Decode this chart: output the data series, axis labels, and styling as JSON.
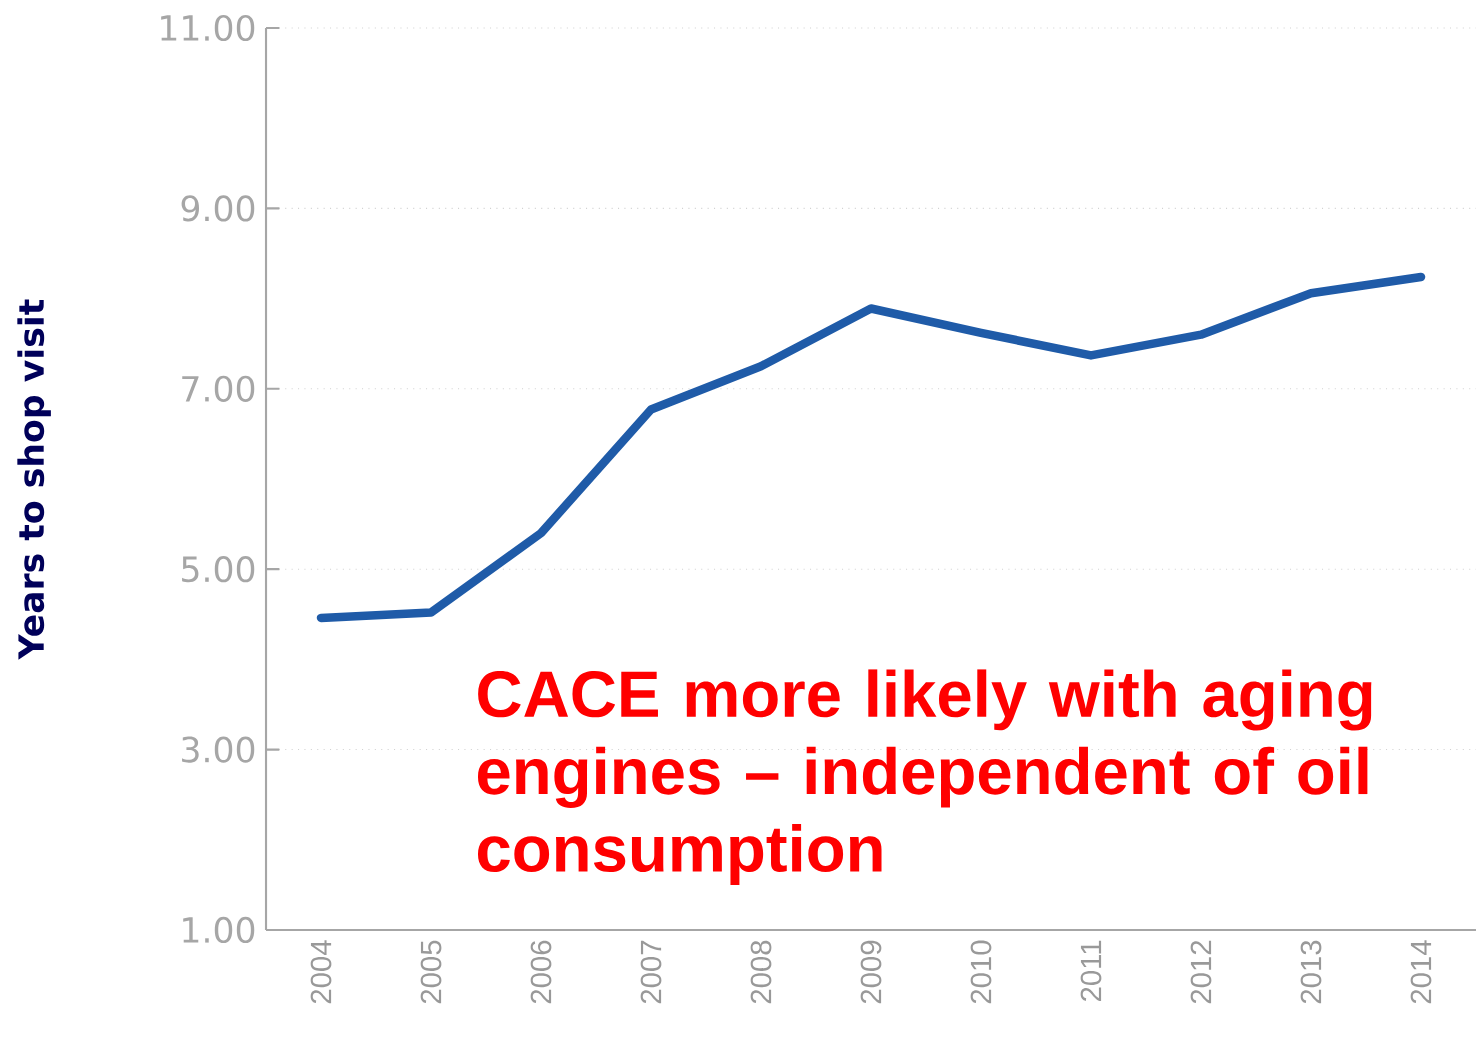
{
  "chart_data": {
    "type": "line",
    "ylabel": "Years to shop visit",
    "categories": [
      "2004",
      "2005",
      "2006",
      "2007",
      "2008",
      "2009",
      "2010",
      "2011",
      "2012",
      "2013",
      "2014"
    ],
    "series": [
      {
        "color": "#1f5ba8",
        "values": [
          4.46,
          4.52,
          5.4,
          6.77,
          7.25,
          7.89,
          7.62,
          7.37,
          7.6,
          8.06,
          8.24
        ]
      }
    ],
    "ylim": [
      1,
      11
    ],
    "yticks": [
      {
        "value": 1,
        "label": "1.00"
      },
      {
        "value": 3,
        "label": "3.00"
      },
      {
        "value": 5,
        "label": "5.00"
      },
      {
        "value": 7,
        "label": "7.00"
      },
      {
        "value": 9,
        "label": "9.00"
      },
      {
        "value": 11,
        "label": "11.00"
      }
    ],
    "grid": "y",
    "annotations": [
      "CACE more likely with aging engines – independent of oil consumption"
    ]
  }
}
